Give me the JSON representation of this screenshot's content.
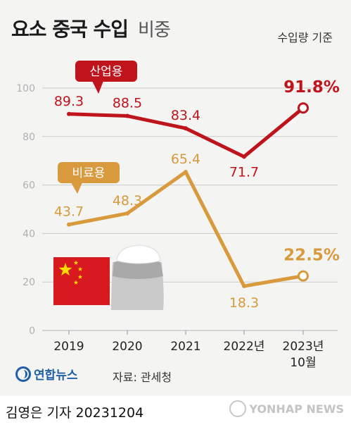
{
  "header": {
    "title": "요소 중국 수입",
    "subtitle": "비중",
    "basis": "수입량 기준"
  },
  "footer": {
    "agency": "연합뉴스",
    "source": "자료: 관세청",
    "byline": "김영은 기자  20231204",
    "watermark": "YONHAP NEWS"
  },
  "colors": {
    "industrial": "#c0141c",
    "fertilizer": "#d89a3c",
    "grid": "#c9c9c9",
    "axis_text": "#b0b0b0"
  },
  "chart_data": {
    "type": "line",
    "categories": [
      "2019",
      "2020",
      "2021",
      "2022년",
      "2023년\n10월"
    ],
    "ylim": [
      0,
      100
    ],
    "yticks": [
      0,
      20,
      40,
      60,
      80,
      100
    ],
    "grid": true,
    "series": [
      {
        "name": "산업용",
        "values": [
          89.3,
          88.5,
          83.4,
          71.7,
          91.8
        ],
        "labels": [
          "89.3",
          "88.5",
          "83.4",
          "71.7",
          "91.8%"
        ]
      },
      {
        "name": "비료용",
        "values": [
          43.7,
          48.3,
          65.4,
          18.3,
          22.5
        ],
        "labels": [
          "43.7",
          "48.3",
          "65.4",
          "18.3",
          "22.5%"
        ]
      }
    ]
  }
}
